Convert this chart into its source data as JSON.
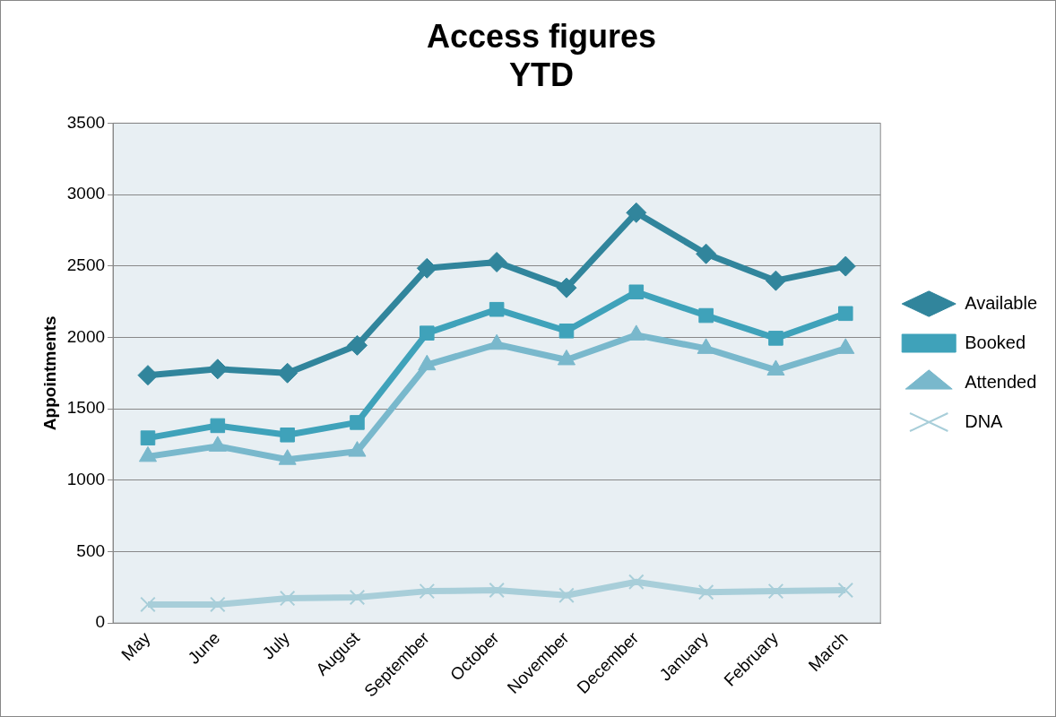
{
  "chart_data": {
    "type": "line",
    "title": "Access figures\nYTD",
    "ylabel": "Appointments",
    "categories": [
      "May",
      "June",
      "July",
      "August",
      "September",
      "October",
      "November",
      "December",
      "January",
      "February",
      "March"
    ],
    "series": [
      {
        "name": "Available",
        "color": "#31859c",
        "marker": "diamond",
        "values": [
          1735,
          1778,
          1750,
          1944,
          2484,
          2527,
          2347,
          2873,
          2585,
          2397,
          2498
        ]
      },
      {
        "name": "Booked",
        "color": "#3fa2ba",
        "marker": "square",
        "values": [
          1296,
          1382,
          1317,
          1404,
          2030,
          2196,
          2045,
          2318,
          2153,
          1994,
          2167
        ]
      },
      {
        "name": "Attended",
        "color": "#79b8cc",
        "marker": "triangle",
        "values": [
          1166,
          1238,
          1145,
          1202,
          1807,
          1951,
          1843,
          2016,
          1922,
          1771,
          1922
        ]
      },
      {
        "name": "DNA",
        "color": "#a8ced9",
        "marker": "cross",
        "values": [
          130,
          130,
          173,
          180,
          223,
          230,
          194,
          288,
          216,
          223,
          230
        ]
      }
    ],
    "ylim": [
      0,
      3500
    ],
    "yticks": [
      0,
      500,
      1000,
      1500,
      2000,
      2500,
      3000,
      3500
    ],
    "grid": "y",
    "legend": "right",
    "line_style": "solid"
  }
}
